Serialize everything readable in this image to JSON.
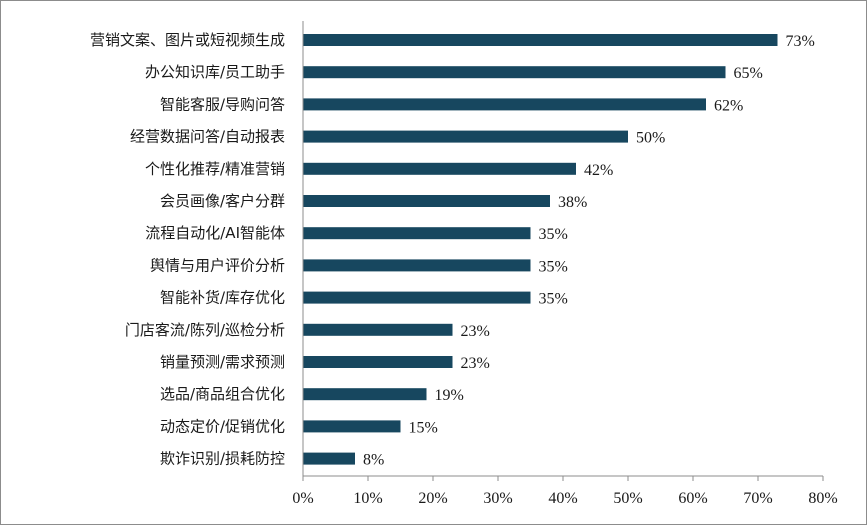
{
  "chart_data": {
    "type": "bar",
    "orientation": "horizontal",
    "categories": [
      "营销文案、图片或短视频生成",
      "办公知识库/员工助手",
      "智能客服/导购问答",
      "经营数据问答/自动报表",
      "个性化推荐/精准营销",
      "会员画像/客户分群",
      "流程自动化/AI智能体",
      "舆情与用户评价分析",
      "智能补货/库存优化",
      "门店客流/陈列/巡检分析",
      "销量预测/需求预测",
      "选品/商品组合优化",
      "动态定价/促销优化",
      "欺诈识别/损耗防控"
    ],
    "values": [
      73,
      65,
      62,
      50,
      42,
      38,
      35,
      35,
      35,
      23,
      23,
      19,
      15,
      8
    ],
    "data_labels": [
      "73%",
      "65%",
      "62%",
      "50%",
      "42%",
      "38%",
      "35%",
      "35%",
      "35%",
      "23%",
      "23%",
      "19%",
      "15%",
      "8%"
    ],
    "xlim": [
      0,
      80
    ],
    "x_ticks": [
      "0%",
      "10%",
      "20%",
      "30%",
      "40%",
      "50%",
      "60%",
      "70%",
      "80%"
    ],
    "grid": false,
    "bar_color": "#17475f",
    "title": "",
    "xlabel": "",
    "ylabel": ""
  }
}
